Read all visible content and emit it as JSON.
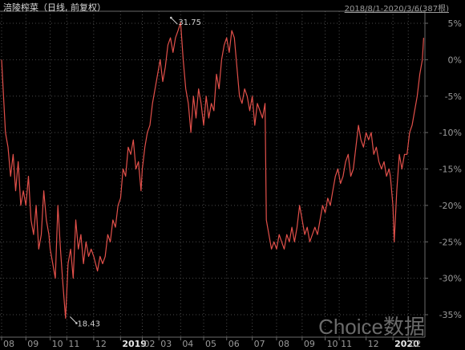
{
  "header": {
    "title": "涪陵榨菜（日线, 前复权）",
    "range": "2018/8/1-2020/3/6(387根)"
  },
  "watermark": "Choice数据",
  "colors": {
    "background": "#000000",
    "line": "#e2504a",
    "grid": "#4a4a4a",
    "axis_text": "#9a9a9a"
  },
  "chart_data": {
    "type": "line",
    "title": "",
    "xlabel": "",
    "ylabel": "",
    "ylim": [
      -38,
      6
    ],
    "y_ticks": [
      5,
      0,
      -5,
      -10,
      -15,
      -20,
      -25,
      -30,
      -35
    ],
    "y_tick_labels": [
      "5%",
      "0%",
      "-5%",
      "-10%",
      "-15%",
      "-20%",
      "-25%",
      "-30%",
      "-35%"
    ],
    "x_ticks": [
      {
        "label": "08",
        "x": 0
      },
      {
        "label": "09",
        "x": 19
      },
      {
        "label": "10",
        "x": 38
      },
      {
        "label": "11",
        "x": 51
      },
      {
        "label": "12",
        "x": 72
      },
      {
        "label": "2019",
        "x": 93
      },
      {
        "label": "02",
        "x": 110
      },
      {
        "label": "03",
        "x": 123
      },
      {
        "label": "04",
        "x": 140
      },
      {
        "label": "05",
        "x": 158
      },
      {
        "label": "06",
        "x": 176
      },
      {
        "label": "07",
        "x": 196
      },
      {
        "label": "08",
        "x": 215
      },
      {
        "label": "09",
        "x": 235
      },
      {
        "label": "10",
        "x": 253
      },
      {
        "label": "11",
        "x": 264
      },
      {
        "label": "12",
        "x": 285
      },
      {
        "label": "2020",
        "x": 306
      },
      {
        "label": "02",
        "x": 318
      }
    ],
    "annotations": [
      {
        "text": "31.75",
        "x": 140,
        "y": 5.1,
        "direction": "up-right"
      },
      {
        "text": "18.43",
        "x": 51,
        "y": -35.5,
        "direction": "down-right"
      }
    ],
    "series": [
      {
        "values": [
          [
            0,
            0
          ],
          [
            3,
            -10
          ],
          [
            5,
            -12
          ],
          [
            7,
            -16
          ],
          [
            9,
            -13
          ],
          [
            11,
            -18
          ],
          [
            13,
            -14
          ],
          [
            15,
            -20
          ],
          [
            17,
            -18
          ],
          [
            19,
            -20
          ],
          [
            21,
            -16
          ],
          [
            23,
            -22
          ],
          [
            25,
            -24
          ],
          [
            27,
            -20
          ],
          [
            29,
            -26
          ],
          [
            31,
            -24
          ],
          [
            33,
            -18
          ],
          [
            35,
            -22
          ],
          [
            37,
            -24
          ],
          [
            38,
            -26
          ],
          [
            40,
            -28
          ],
          [
            42,
            -30
          ],
          [
            44,
            -20
          ],
          [
            46,
            -26
          ],
          [
            48,
            -31
          ],
          [
            50,
            -35.5
          ],
          [
            52,
            -28
          ],
          [
            54,
            -26
          ],
          [
            56,
            -30
          ],
          [
            58,
            -22
          ],
          [
            60,
            -26
          ],
          [
            62,
            -24
          ],
          [
            64,
            -28
          ],
          [
            66,
            -25
          ],
          [
            68,
            -27
          ],
          [
            70,
            -26
          ],
          [
            72,
            -27
          ],
          [
            75,
            -29
          ],
          [
            77,
            -27
          ],
          [
            79,
            -28
          ],
          [
            81,
            -27
          ],
          [
            83,
            -24
          ],
          [
            85,
            -25
          ],
          [
            87,
            -22
          ],
          [
            89,
            -23
          ],
          [
            91,
            -20
          ],
          [
            93,
            -19
          ],
          [
            95,
            -15
          ],
          [
            97,
            -16
          ],
          [
            99,
            -12
          ],
          [
            101,
            -13
          ],
          [
            103,
            -11
          ],
          [
            105,
            -15
          ],
          [
            107,
            -14
          ],
          [
            109,
            -18
          ],
          [
            110,
            -15
          ],
          [
            112,
            -12
          ],
          [
            114,
            -10
          ],
          [
            116,
            -9
          ],
          [
            118,
            -6
          ],
          [
            120,
            -4
          ],
          [
            122,
            -2
          ],
          [
            124,
            0
          ],
          [
            126,
            -3
          ],
          [
            128,
            -1
          ],
          [
            130,
            2
          ],
          [
            132,
            3
          ],
          [
            134,
            1
          ],
          [
            136,
            3
          ],
          [
            138,
            4
          ],
          [
            140,
            5.1
          ],
          [
            142,
            0
          ],
          [
            144,
            -4
          ],
          [
            146,
            -6
          ],
          [
            148,
            -10
          ],
          [
            150,
            -5
          ],
          [
            152,
            -8
          ],
          [
            154,
            -4
          ],
          [
            156,
            -6
          ],
          [
            158,
            -9
          ],
          [
            160,
            -5
          ],
          [
            162,
            -8
          ],
          [
            164,
            -6
          ],
          [
            166,
            -7
          ],
          [
            168,
            -2
          ],
          [
            170,
            -4
          ],
          [
            172,
            0
          ],
          [
            174,
            2
          ],
          [
            176,
            3
          ],
          [
            178,
            1
          ],
          [
            180,
            4
          ],
          [
            182,
            3
          ],
          [
            184,
            -1
          ],
          [
            186,
            -5
          ],
          [
            188,
            -6
          ],
          [
            190,
            -4
          ],
          [
            192,
            -5
          ],
          [
            194,
            -7
          ],
          [
            196,
            -5
          ],
          [
            198,
            -9
          ],
          [
            200,
            -6
          ],
          [
            202,
            -7
          ],
          [
            204,
            -8
          ],
          [
            206,
            -6
          ],
          [
            207,
            -22
          ],
          [
            209,
            -24
          ],
          [
            211,
            -26
          ],
          [
            213,
            -25
          ],
          [
            215,
            -26
          ],
          [
            217,
            -24
          ],
          [
            219,
            -25
          ],
          [
            221,
            -26
          ],
          [
            223,
            -24
          ],
          [
            225,
            -25
          ],
          [
            227,
            -23
          ],
          [
            229,
            -25
          ],
          [
            231,
            -23
          ],
          [
            233,
            -20
          ],
          [
            235,
            -22
          ],
          [
            237,
            -24
          ],
          [
            239,
            -23
          ],
          [
            241,
            -25
          ],
          [
            243,
            -24
          ],
          [
            245,
            -23
          ],
          [
            247,
            -24
          ],
          [
            249,
            -22
          ],
          [
            251,
            -20
          ],
          [
            253,
            -21
          ],
          [
            255,
            -19
          ],
          [
            257,
            -20
          ],
          [
            259,
            -18
          ],
          [
            261,
            -16
          ],
          [
            263,
            -15
          ],
          [
            265,
            -17
          ],
          [
            267,
            -16
          ],
          [
            269,
            -14
          ],
          [
            271,
            -13
          ],
          [
            273,
            -16
          ],
          [
            275,
            -15
          ],
          [
            277,
            -12
          ],
          [
            279,
            -9
          ],
          [
            281,
            -11
          ],
          [
            283,
            -12
          ],
          [
            285,
            -10
          ],
          [
            287,
            -11
          ],
          [
            289,
            -10
          ],
          [
            291,
            -13
          ],
          [
            293,
            -12
          ],
          [
            295,
            -14
          ],
          [
            297,
            -15
          ],
          [
            299,
            -14
          ],
          [
            301,
            -16
          ],
          [
            303,
            -15
          ],
          [
            304,
            -16
          ],
          [
            306,
            -20
          ],
          [
            307,
            -25
          ],
          [
            309,
            -18
          ],
          [
            311,
            -13
          ],
          [
            313,
            -15
          ],
          [
            315,
            -13
          ],
          [
            317,
            -13
          ],
          [
            319,
            -10
          ],
          [
            321,
            -9
          ],
          [
            323,
            -7
          ],
          [
            325,
            -5
          ],
          [
            327,
            -2
          ],
          [
            329,
            0
          ],
          [
            330,
            3
          ]
        ]
      }
    ]
  }
}
